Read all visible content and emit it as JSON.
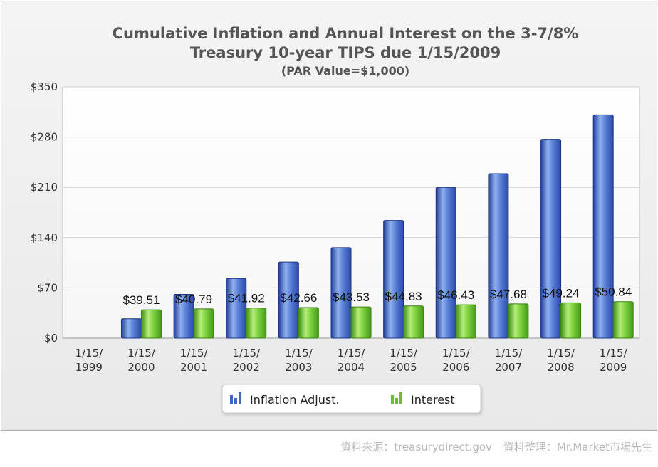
{
  "chart_data": {
    "type": "bar",
    "title": "Cumulative Inflation and Annual Interest on the 3-7/8%",
    "title_line2": "Treasury 10-year TIPS due 1/15/2009",
    "subtitle": "(PAR Value=$1,000)",
    "categories": [
      [
        "1/15/",
        "1999"
      ],
      [
        "1/15/",
        "2000"
      ],
      [
        "1/15/",
        "2001"
      ],
      [
        "1/15/",
        "2002"
      ],
      [
        "1/15/",
        "2003"
      ],
      [
        "1/15/",
        "2004"
      ],
      [
        "1/15/",
        "2005"
      ],
      [
        "1/15/",
        "2006"
      ],
      [
        "1/15/",
        "2007"
      ],
      [
        "1/15/",
        "2008"
      ],
      [
        "1/15/",
        "2009"
      ]
    ],
    "series": [
      {
        "name": "Inflation Adjust.",
        "color": "#3f66c8",
        "values": [
          0,
          27,
          61,
          83,
          106,
          126,
          164,
          210,
          229,
          277,
          311
        ]
      },
      {
        "name": "Interest",
        "color": "#66c22a",
        "values": [
          0,
          39.51,
          40.79,
          41.92,
          42.66,
          43.53,
          44.83,
          46.43,
          47.68,
          49.24,
          50.84
        ],
        "data_labels": [
          "",
          "$39.51",
          "$40.79",
          "$41.92",
          "$42.66",
          "$43.53",
          "$44.83",
          "$46.43",
          "$47.68",
          "$49.24",
          "$50.84"
        ]
      }
    ],
    "yticks": [
      {
        "value": 0,
        "label": "$0"
      },
      {
        "value": 70,
        "label": "$70"
      },
      {
        "value": 140,
        "label": "$140"
      },
      {
        "value": 210,
        "label": "$210"
      },
      {
        "value": 280,
        "label": "$280"
      },
      {
        "value": 350,
        "label": "$350"
      }
    ],
    "ylim": [
      0,
      350
    ],
    "grid": true,
    "legend_position": "bottom-center"
  },
  "credits": [
    "資料來源：treasurydirect.gov",
    "資料整理：Mr.Market市場先生"
  ]
}
